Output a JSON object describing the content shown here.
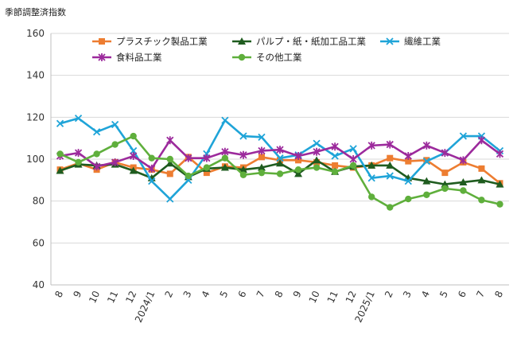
{
  "chart_data": {
    "type": "line",
    "title": "",
    "ylabel": "季節調整済指数",
    "xlabel": "",
    "ylim": [
      40,
      160
    ],
    "yticks": [
      40,
      60,
      80,
      100,
      120,
      140,
      160
    ],
    "grid": true,
    "legend": "top",
    "categories": [
      "8",
      "9",
      "10",
      "11",
      "12",
      "2024/1",
      "2",
      "3",
      "4",
      "5",
      "6",
      "7",
      "8",
      "9",
      "10",
      "11",
      "12",
      "2025/1",
      "2",
      "3",
      "4",
      "5",
      "6",
      "7",
      "8"
    ],
    "series": [
      {
        "name": "プラスチック製品工業",
        "color": "#ED7D31",
        "marker": "square",
        "values": [
          95,
          98,
          95,
          98.5,
          96,
          95,
          93,
          101,
          93.5,
          96.5,
          96,
          101,
          99.5,
          99.5,
          98.5,
          97,
          96,
          97,
          100.5,
          99,
          99.5,
          93.5,
          98.5,
          95.5,
          88.5
        ]
      },
      {
        "name": "パルプ・紙・紙加工品工業",
        "color": "#1F5C1F",
        "marker": "triangle",
        "values": [
          94.5,
          97.5,
          97,
          97.5,
          94.5,
          91,
          98,
          91.5,
          95.5,
          96,
          95,
          96,
          98,
          93,
          99.5,
          94,
          96.5,
          97,
          97,
          91,
          89.5,
          88,
          89,
          90,
          88
        ]
      },
      {
        "name": "繊維工業",
        "color": "#1FA4D8",
        "marker": "x",
        "values": [
          117,
          119.5,
          113,
          116.5,
          104,
          89.5,
          81,
          90,
          102.5,
          118.5,
          111,
          110.5,
          100.5,
          102,
          107.5,
          101.5,
          105,
          91,
          92,
          89.5,
          99,
          103,
          111,
          111,
          104
        ]
      },
      {
        "name": "食料品工業",
        "color": "#9C2A9C",
        "marker": "star",
        "values": [
          101.5,
          103,
          96.5,
          98.5,
          101.5,
          95.5,
          109,
          100.5,
          100.5,
          103.5,
          102,
          104,
          104.5,
          101.5,
          103.5,
          106,
          100,
          106.5,
          107,
          101.5,
          106.5,
          103,
          99.5,
          109,
          102.5
        ]
      },
      {
        "name": "その他工業",
        "color": "#5FAF3C",
        "marker": "circle",
        "values": [
          102.5,
          98.5,
          102.5,
          107,
          111,
          100.5,
          100,
          92,
          96,
          100.5,
          92.5,
          93.5,
          93,
          95,
          96,
          94,
          97,
          82,
          77,
          81,
          83,
          86,
          85,
          80.5,
          78.5
        ]
      }
    ]
  }
}
